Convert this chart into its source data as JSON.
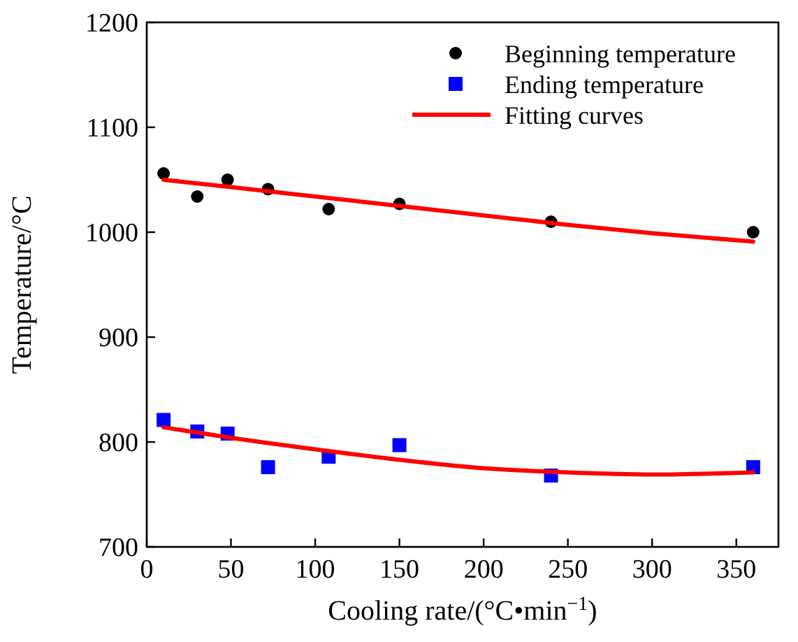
{
  "chart_data": {
    "type": "scatter",
    "xlabel": "Cooling rate/(°C•min$^{−1}$)",
    "ylabel": "Temperature/°C",
    "xlim": [
      0,
      375
    ],
    "xticks": [
      0,
      50,
      100,
      150,
      200,
      250,
      300,
      350
    ],
    "ylim": [
      700,
      1200
    ],
    "yticks": [
      700,
      800,
      900,
      1000,
      1100,
      1200
    ],
    "grid": false,
    "legend": "top right",
    "series": [
      {
        "name": "Beginning temperature",
        "marker": "circle",
        "color": "#000000",
        "x": [
          10,
          30,
          48,
          72,
          108,
          150,
          240,
          360
        ],
        "values": [
          1056,
          1034,
          1050,
          1041,
          1022,
          1027,
          1010,
          1000
        ]
      },
      {
        "name": "Ending temperature",
        "marker": "square",
        "color": "#0000ff",
        "x": [
          10,
          30,
          48,
          72,
          108,
          150,
          240,
          360
        ],
        "values": [
          821,
          810,
          808,
          776,
          786,
          797,
          768,
          776
        ]
      },
      {
        "name": "Fitting curves",
        "type": "line",
        "marker": "none",
        "color": "#ff0000",
        "x": [
          10,
          50,
          100,
          150,
          200,
          250,
          300,
          360
        ],
        "values": [
          1050,
          1043,
          1034,
          1025,
          1016,
          1007,
          999,
          991
        ]
      },
      {
        "type": "line",
        "marker": "none",
        "color": "#ff0000",
        "x": [
          10,
          50,
          100,
          150,
          200,
          250,
          300,
          360
        ],
        "values": [
          814,
          804,
          793,
          783,
          775,
          771,
          769,
          771
        ]
      }
    ]
  }
}
